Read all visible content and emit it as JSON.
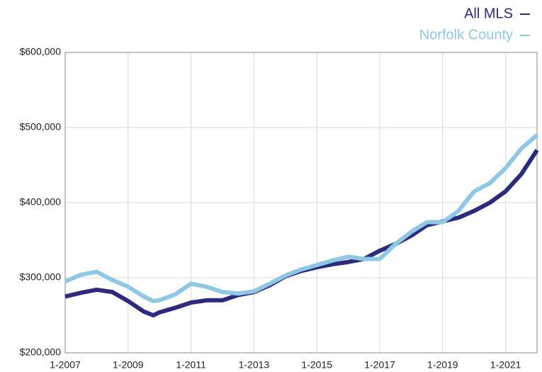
{
  "chart_data": {
    "type": "line",
    "x": [
      2007,
      2007.5,
      2008,
      2008.5,
      2009,
      2009.5,
      2009.8,
      2010,
      2010.5,
      2011,
      2011.5,
      2012,
      2012.5,
      2013,
      2013.5,
      2014,
      2014.5,
      2015,
      2015.5,
      2016,
      2016.5,
      2017,
      2017.5,
      2018,
      2018.5,
      2019,
      2019.5,
      2020,
      2020.5,
      2021,
      2021.5,
      2022
    ],
    "series": [
      {
        "name": "All MLS",
        "color": "#2b2a7e",
        "values": [
          275000,
          280000,
          284000,
          281000,
          269000,
          255000,
          250000,
          254000,
          260000,
          267000,
          270000,
          270000,
          277000,
          281000,
          290000,
          302000,
          309000,
          314000,
          318000,
          321000,
          325000,
          336000,
          345000,
          356000,
          370000,
          375000,
          380000,
          389000,
          400000,
          415000,
          438000,
          470000
        ]
      },
      {
        "name": "Norfolk County",
        "color": "#8ec8e3",
        "values": [
          295000,
          304000,
          308000,
          297000,
          288000,
          275000,
          269000,
          270000,
          278000,
          292000,
          288000,
          281000,
          279000,
          282000,
          292000,
          303000,
          311000,
          317000,
          323000,
          328000,
          325000,
          325000,
          345000,
          361000,
          374000,
          374000,
          389000,
          415000,
          426000,
          446000,
          472000,
          490000
        ]
      }
    ],
    "xlim": [
      2007,
      2022
    ],
    "xticks": [
      {
        "value": 2007,
        "label": "1-2007"
      },
      {
        "value": 2009,
        "label": "1-2009"
      },
      {
        "value": 2011,
        "label": "1-2011"
      },
      {
        "value": 2013,
        "label": "1-2013"
      },
      {
        "value": 2015,
        "label": "1-2015"
      },
      {
        "value": 2017,
        "label": "1-2017"
      },
      {
        "value": 2019,
        "label": "1-2019"
      },
      {
        "value": 2021,
        "label": "1-2021"
      }
    ],
    "ylim": [
      200000,
      600000
    ],
    "yticks": [
      {
        "value": 200000,
        "label": "$200,000"
      },
      {
        "value": 300000,
        "label": "$300,000"
      },
      {
        "value": 400000,
        "label": "$400,000"
      },
      {
        "value": 500000,
        "label": "$500,000"
      },
      {
        "value": 600000,
        "label": "$600,000"
      }
    ],
    "grid": true,
    "legend": "top-right"
  }
}
